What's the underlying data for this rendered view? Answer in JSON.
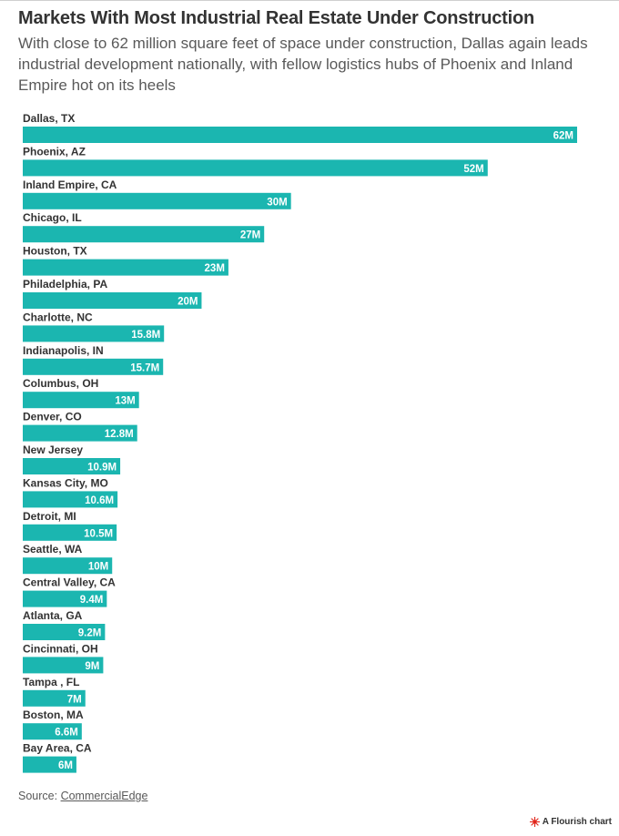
{
  "header": {
    "title": "Markets With Most Industrial Real Estate Under Construction",
    "subtitle": "With close to 62 million square feet of space under construction, Dallas again leads industrial development nationally, with fellow logistics hubs of Phoenix and Inland Empire hot on its heels"
  },
  "chart_data": {
    "type": "bar",
    "orientation": "horizontal",
    "categories": [
      "Dallas, TX",
      "Phoenix, AZ",
      "Inland Empire, CA",
      "Chicago, IL",
      "Houston, TX",
      "Philadelphia, PA",
      "Charlotte, NC",
      "Indianapolis, IN",
      "Columbus, OH",
      "Denver, CO",
      "New Jersey",
      "Kansas City, MO",
      "Detroit, MI",
      "Seattle, WA",
      "Central Valley, CA",
      "Atlanta, GA",
      "Cincinnati, OH",
      "Tampa , FL",
      "Boston, MA",
      "Bay Area, CA"
    ],
    "values": [
      62,
      52,
      30,
      27,
      23,
      20,
      15.8,
      15.7,
      13,
      12.8,
      10.9,
      10.6,
      10.5,
      10,
      9.4,
      9.2,
      9,
      7,
      6.6,
      6
    ],
    "value_labels": [
      "62M",
      "52M",
      "30M",
      "27M",
      "23M",
      "20M",
      "15.8M",
      "15.7M",
      "13M",
      "12.8M",
      "10.9M",
      "10.6M",
      "10.5M",
      "10M",
      "9.4M",
      "9.2M",
      "9M",
      "7M",
      "6.6M",
      "6M"
    ],
    "xlim": [
      0,
      62
    ],
    "grid": false,
    "bar_color": "#1bb6b0",
    "label_color": "#ffffff"
  },
  "footer": {
    "source_prefix": "Source: ",
    "source_link": "CommercialEdge",
    "credit": "A Flourish chart",
    "credit_icon": "flourish-logo-icon",
    "credit_icon_color": "#e1251b"
  }
}
